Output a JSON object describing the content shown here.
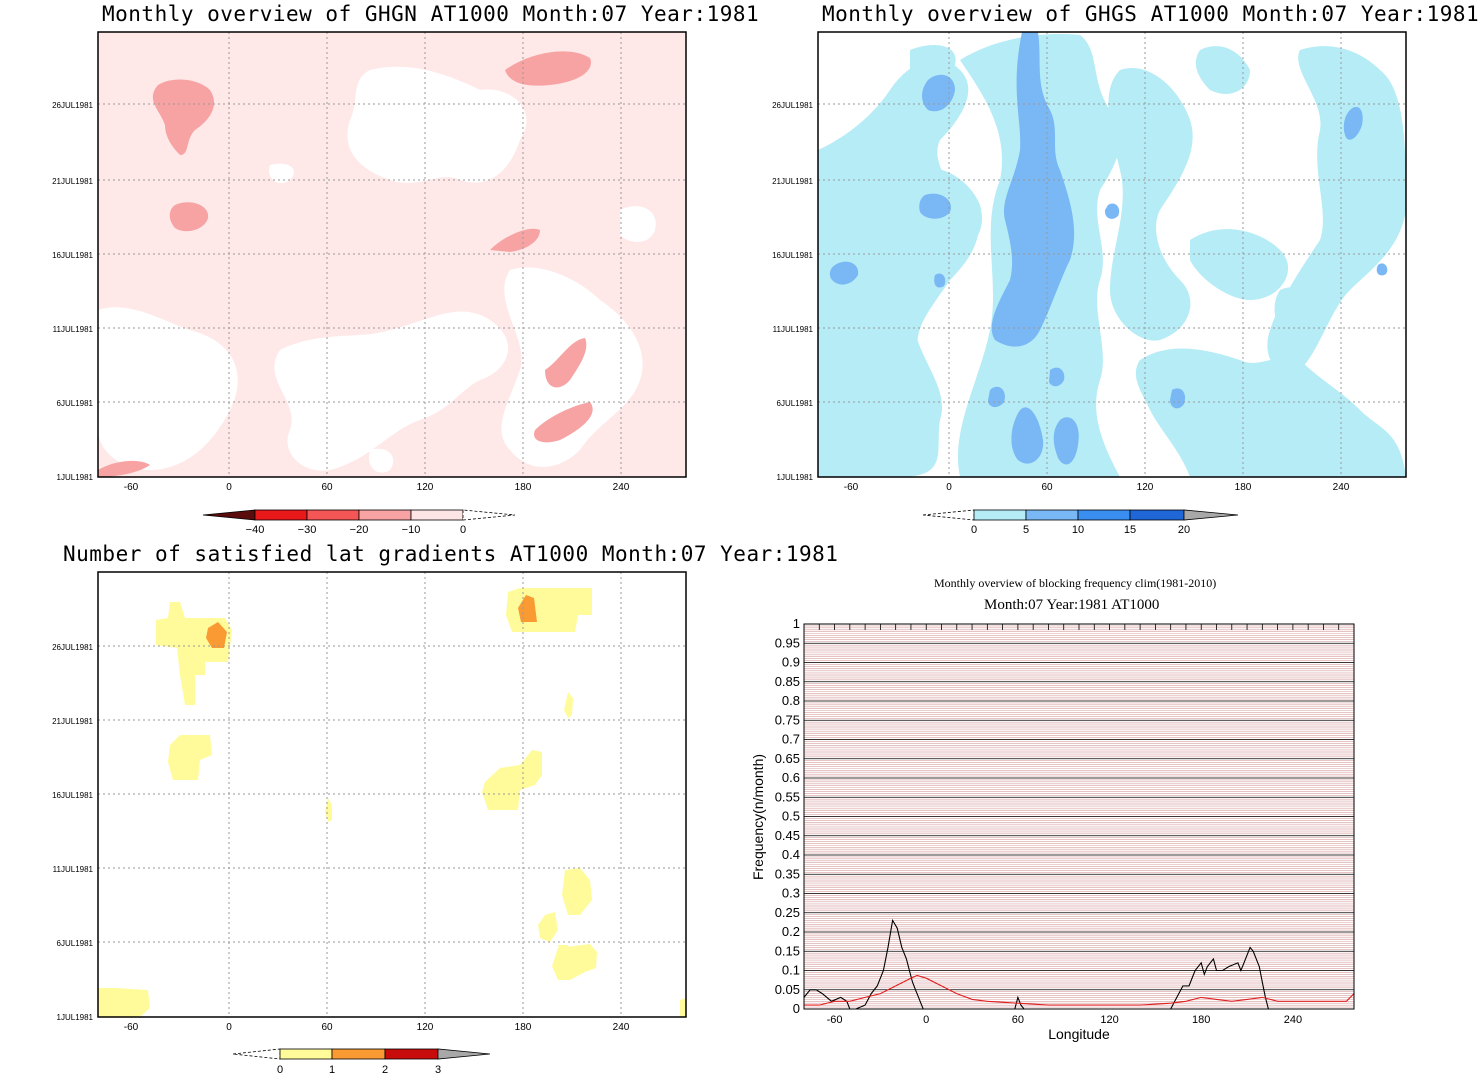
{
  "panels": {
    "ghgn": {
      "title": "Monthly overview of GHGN AT1000 Month:07 Year:1981",
      "colorbar_labels": [
        "−40",
        "−30",
        "−20",
        "−10",
        "0"
      ],
      "colorbar_colors": [
        "#5a0c0c",
        "#e8181b",
        "#f45555",
        "#f7a3a3",
        "#fee5e5",
        "#ffffff"
      ]
    },
    "ghgs": {
      "title": "Monthly overview of GHGS AT1000 Month:07 Year:1981",
      "colorbar_labels": [
        "0",
        "5",
        "10",
        "15",
        "20"
      ],
      "colorbar_colors": [
        "#ffffff",
        "#b5ecf6",
        "#79b8f4",
        "#3a8ef0",
        "#1f66d6",
        "#a8a8a8"
      ]
    },
    "lat_gradients": {
      "title": "Number of satisfied lat gradients AT1000 Month:07 Year:1981",
      "colorbar_labels": [
        "0",
        "1",
        "2",
        "3"
      ],
      "colorbar_colors": [
        "#ffffff",
        "#fffb9a",
        "#fa9a33",
        "#c80c0c",
        "#a8a8a8"
      ]
    },
    "common_axes": {
      "x_ticks": [
        "-60",
        "0",
        "60",
        "120",
        "180",
        "240"
      ],
      "y_ticks": [
        "1JUL1981",
        "6JUL1981",
        "11JUL1981",
        "16JUL1981",
        "21JUL1981",
        "26JUL1981"
      ]
    }
  },
  "chart_data": {
    "type": "line",
    "title": "Monthly overview of blocking frequency clim(1981-2010)",
    "subtitle": "Month:07 Year:1981  AT1000",
    "xlabel": "Longitude",
    "ylabel": "Frequency(n/month)",
    "xlim": [
      -80,
      280
    ],
    "ylim": [
      0,
      1
    ],
    "x_ticks": [
      "-60",
      "0",
      "60",
      "120",
      "180",
      "240"
    ],
    "y_ticks": [
      "0",
      "0.05",
      "0.1",
      "0.15",
      "0.2",
      "0.25",
      "0.3",
      "0.35",
      "0.4",
      "0.45",
      "0.5",
      "0.55",
      "0.6",
      "0.65",
      "0.7",
      "0.75",
      "0.8",
      "0.85",
      "0.9",
      "0.95",
      "1"
    ],
    "grid": true,
    "series": [
      {
        "color": "#000000",
        "x": [
          -80,
          -76,
          -72,
          -68,
          -62,
          -56,
          -52,
          -50,
          -46,
          -40,
          -36,
          -32,
          -28,
          -25,
          -22,
          -19,
          -16,
          -13,
          -11,
          -9,
          -7,
          -5,
          -4,
          -3,
          -2,
          -1,
          0,
          2,
          58,
          60,
          62,
          64,
          160,
          164,
          168,
          172,
          176,
          180,
          182,
          184,
          188,
          190,
          194,
          198,
          204,
          206,
          208,
          212,
          214,
          218,
          220,
          222,
          224,
          280
        ],
        "y": [
          0.03,
          0.05,
          0.05,
          0.04,
          0.02,
          0.03,
          0.02,
          0.0,
          0.0,
          0.01,
          0.04,
          0.06,
          0.1,
          0.16,
          0.23,
          0.21,
          0.16,
          0.13,
          0.1,
          0.07,
          0.05,
          0.03,
          0.02,
          0.01,
          0.0,
          0.0,
          0.0,
          0.0,
          0.0,
          0.03,
          0.01,
          0.0,
          0.0,
          0.03,
          0.06,
          0.06,
          0.1,
          0.12,
          0.09,
          0.11,
          0.13,
          0.1,
          0.1,
          0.11,
          0.12,
          0.1,
          0.12,
          0.16,
          0.15,
          0.11,
          0.07,
          0.03,
          0.0,
          0.0
        ]
      },
      {
        "color": "#e02020",
        "x": [
          -80,
          -70,
          -60,
          -50,
          -40,
          -30,
          -20,
          -10,
          -6,
          0,
          10,
          20,
          30,
          40,
          60,
          80,
          100,
          120,
          140,
          160,
          170,
          180,
          190,
          200,
          210,
          220,
          230,
          240,
          260,
          275,
          280
        ],
        "y": [
          0.01,
          0.01,
          0.02,
          0.02,
          0.03,
          0.04,
          0.06,
          0.08,
          0.087,
          0.08,
          0.06,
          0.04,
          0.025,
          0.02,
          0.015,
          0.01,
          0.01,
          0.01,
          0.01,
          0.015,
          0.02,
          0.03,
          0.025,
          0.02,
          0.025,
          0.03,
          0.02,
          0.02,
          0.02,
          0.02,
          0.04
        ]
      }
    ]
  }
}
